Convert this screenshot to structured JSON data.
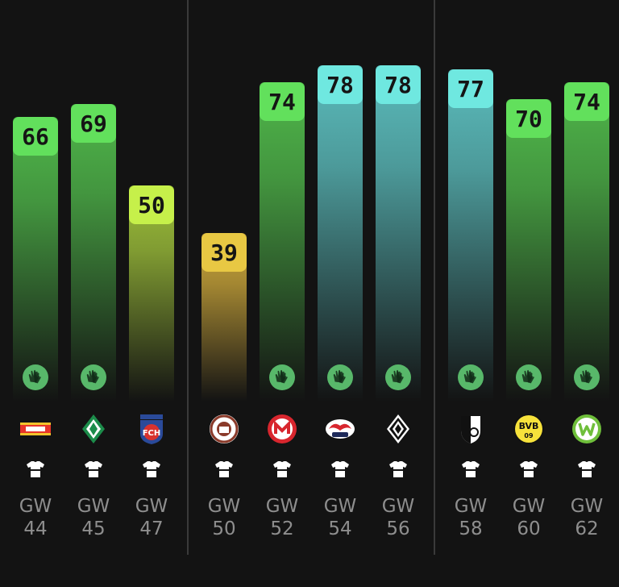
{
  "chart_data": {
    "type": "bar",
    "categories": [
      "GW 44",
      "GW 45",
      "GW 47",
      "GW 50",
      "GW 52",
      "GW 54",
      "GW 56",
      "GW 58",
      "GW 60",
      "GW 62"
    ],
    "values": [
      66,
      69,
      50,
      39,
      74,
      78,
      78,
      77,
      70,
      74
    ],
    "groups": [
      [
        0,
        1,
        2
      ],
      [
        3,
        4,
        5,
        6
      ],
      [
        7,
        8,
        9
      ]
    ]
  },
  "fixtures": [
    {
      "gw_label": "GW",
      "gw_number": "44",
      "score": "66",
      "team": "Union Berlin",
      "crest_icon": "union-berlin-crest",
      "score_color": "#62e05c",
      "bar_top": "#4fb64a",
      "glove": true
    },
    {
      "gw_label": "GW",
      "gw_number": "45",
      "score": "69",
      "team": "Werder Bremen",
      "crest_icon": "werder-bremen-crest",
      "score_color": "#62e05c",
      "bar_top": "#4fb64a",
      "glove": true
    },
    {
      "gw_label": "GW",
      "gw_number": "47",
      "score": "50",
      "team": "1. FC Heidenheim",
      "crest_icon": "heidenheim-crest",
      "score_color": "#c6f04a",
      "bar_top": "#9cbe3a",
      "glove": false
    },
    {
      "gw_label": "GW",
      "gw_number": "50",
      "score": "39",
      "team": "FC St. Pauli",
      "crest_icon": "st-pauli-crest",
      "score_color": "#e8c843",
      "bar_top": "#c8a43a",
      "glove": false
    },
    {
      "gw_label": "GW",
      "gw_number": "52",
      "score": "74",
      "team": "Mainz 05",
      "crest_icon": "mainz-crest",
      "score_color": "#62e05c",
      "bar_top": "#4fb64a",
      "glove": true
    },
    {
      "gw_label": "GW",
      "gw_number": "54",
      "score": "78",
      "team": "RB Leipzig",
      "crest_icon": "rb-leipzig-crest",
      "score_color": "#6fe8e0",
      "bar_top": "#5bbcbc",
      "glove": true
    },
    {
      "gw_label": "GW",
      "gw_number": "56",
      "score": "78",
      "team": "Borussia Mönchengladbach",
      "crest_icon": "gladbach-crest",
      "score_color": "#6fe8e0",
      "bar_top": "#5bbcbc",
      "glove": true
    },
    {
      "gw_label": "GW",
      "gw_number": "58",
      "score": "77",
      "team": "SC Freiburg",
      "crest_icon": "freiburg-crest",
      "score_color": "#6fe8e0",
      "bar_top": "#5bbcbc",
      "glove": true
    },
    {
      "gw_label": "GW",
      "gw_number": "60",
      "score": "70",
      "team": "Borussia Dortmund",
      "crest_icon": "dortmund-crest",
      "score_color": "#62e05c",
      "bar_top": "#4fb64a",
      "glove": true
    },
    {
      "gw_label": "GW",
      "gw_number": "62",
      "score": "74",
      "team": "VfL Wolfsburg",
      "crest_icon": "wolfsburg-crest",
      "score_color": "#62e05c",
      "bar_top": "#4fb64a",
      "glove": true
    }
  ],
  "colors": {
    "background": "#131313",
    "divider": "#3a3a3a",
    "label": "#8e8e8e",
    "glove_badge": "#58b86a",
    "shirt": "#ffffff"
  },
  "icons": {
    "glove": "goalkeeper-gloves-icon",
    "shirt": "jersey-icon"
  }
}
